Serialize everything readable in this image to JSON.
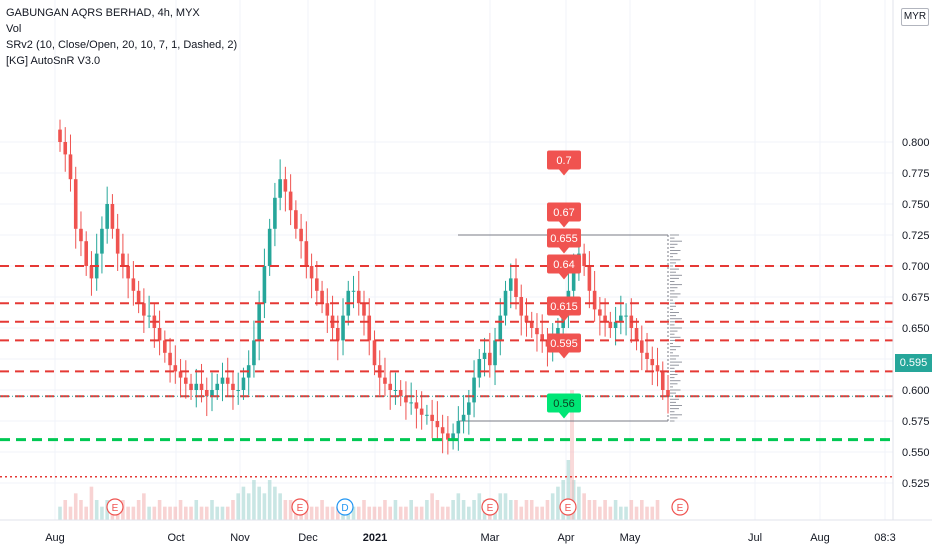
{
  "legend": {
    "title": "GABUNGAN AQRS BERHAD, 4h, MYX",
    "vol": "Vol",
    "srv2": "SRv2 (10, Close/Open, 20, 10, 7, 1, Dashed, 2)",
    "autosnr": "[KG] AutoSnR V3.0"
  },
  "currency_button": "MYR",
  "last_price": "0.595",
  "chart_data": {
    "type": "candlestick",
    "ylim": [
      0.515,
      0.805
    ],
    "y_ticks": [
      "0.800",
      "0.775",
      "0.750",
      "0.725",
      "0.700",
      "0.675",
      "0.650",
      "0.625",
      "0.600",
      "0.575",
      "0.550",
      "0.525"
    ],
    "x_ticks": [
      "Aug",
      "Oct",
      "Nov",
      "Dec",
      "2021",
      "Mar",
      "Apr",
      "May",
      "Jul",
      "Aug",
      "08:3"
    ],
    "resistance_levels": [
      0.7,
      0.67,
      0.655,
      0.64,
      0.615,
      0.595
    ],
    "support_levels": [
      0.56
    ],
    "bottom_dotted_level": 0.53,
    "sr_labels": [
      {
        "text": "0.7",
        "value": 0.7,
        "kind": "resistance"
      },
      {
        "text": "0.67",
        "value": 0.67,
        "kind": "resistance"
      },
      {
        "text": "0.655",
        "value": 0.655,
        "kind": "resistance"
      },
      {
        "text": "0.64",
        "value": 0.64,
        "kind": "resistance"
      },
      {
        "text": "0.615",
        "value": 0.615,
        "kind": "resistance"
      },
      {
        "text": "0.595",
        "value": 0.595,
        "kind": "resistance"
      },
      {
        "text": "0.56",
        "value": 0.56,
        "kind": "support"
      }
    ],
    "range_box": {
      "top": 0.725,
      "bottom": 0.575
    },
    "events": [
      {
        "label": "E",
        "kind": "earnings"
      },
      {
        "label": "E",
        "kind": "earnings"
      },
      {
        "label": "D",
        "kind": "dividend"
      },
      {
        "label": "E",
        "kind": "earnings"
      },
      {
        "label": "E",
        "kind": "earnings"
      },
      {
        "label": "E",
        "kind": "earnings"
      }
    ],
    "price_path": [
      0.8,
      0.79,
      0.77,
      0.73,
      0.72,
      0.7,
      0.69,
      0.71,
      0.73,
      0.75,
      0.73,
      0.71,
      0.7,
      0.69,
      0.68,
      0.67,
      0.66,
      0.66,
      0.65,
      0.64,
      0.63,
      0.62,
      0.615,
      0.61,
      0.605,
      0.6,
      0.605,
      0.6,
      0.595,
      0.6,
      0.605,
      0.61,
      0.605,
      0.6,
      0.6,
      0.61,
      0.62,
      0.64,
      0.67,
      0.7,
      0.73,
      0.755,
      0.77,
      0.76,
      0.745,
      0.73,
      0.72,
      0.7,
      0.69,
      0.68,
      0.67,
      0.66,
      0.65,
      0.64,
      0.66,
      0.68,
      0.68,
      0.67,
      0.66,
      0.64,
      0.62,
      0.61,
      0.605,
      0.6,
      0.6,
      0.595,
      0.59,
      0.59,
      0.585,
      0.58,
      0.58,
      0.575,
      0.57,
      0.565,
      0.56,
      0.565,
      0.575,
      0.58,
      0.59,
      0.61,
      0.625,
      0.63,
      0.62,
      0.64,
      0.66,
      0.68,
      0.69,
      0.675,
      0.66,
      0.655,
      0.65,
      0.645,
      0.64,
      0.635,
      0.64,
      0.65,
      0.66,
      0.68,
      0.7,
      0.71,
      0.7,
      0.68,
      0.665,
      0.66,
      0.655,
      0.65,
      0.655,
      0.66,
      0.66,
      0.65,
      0.64,
      0.63,
      0.625,
      0.62,
      0.615,
      0.6,
      0.595
    ],
    "volume_path": [
      2,
      3,
      2,
      4,
      3,
      2,
      5,
      3,
      2,
      3,
      2,
      2,
      3,
      2,
      2,
      3,
      4,
      2,
      2,
      3,
      2,
      2,
      2,
      3,
      2,
      2,
      3,
      2,
      2,
      3,
      2,
      2,
      2,
      3,
      4,
      5,
      4,
      6,
      5,
      4,
      6,
      5,
      4,
      3,
      3,
      2,
      3,
      3,
      2,
      2,
      3,
      2,
      2,
      2,
      3,
      2,
      2,
      2,
      3,
      2,
      2,
      2,
      3,
      2,
      3,
      2,
      2,
      3,
      2,
      2,
      3,
      4,
      3,
      2,
      2,
      3,
      4,
      3,
      2,
      3,
      4,
      3,
      2,
      3,
      4,
      4,
      3,
      3,
      2,
      3,
      3,
      2,
      2,
      3,
      4,
      5,
      6,
      9,
      6,
      5,
      4,
      3,
      3,
      2,
      3,
      2,
      3,
      2,
      2,
      3,
      2,
      3,
      2,
      2,
      3
    ]
  }
}
